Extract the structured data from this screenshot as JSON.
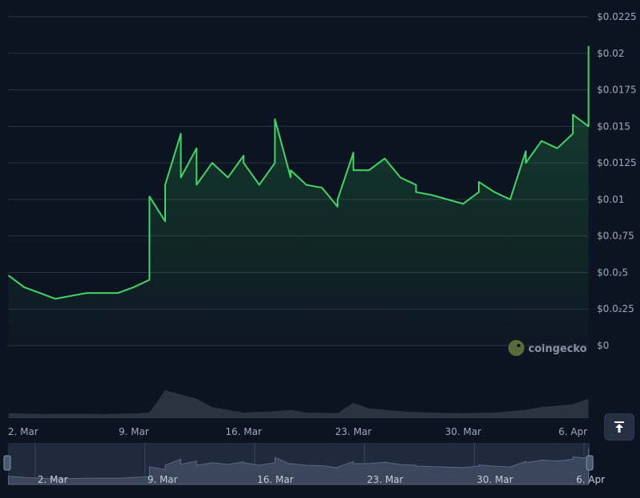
{
  "chart_data": {
    "type": "line",
    "y_tick_labels": [
      "$0.0225",
      "$0.02",
      "$0.0175",
      "$0.015",
      "$0.0125",
      "$0.01",
      "$0.0₂75",
      "$0.0₂5",
      "$0.0₂25",
      "$0"
    ],
    "ylim": [
      0,
      0.0225
    ],
    "grid": true,
    "x_tick_labels": [
      "2. Mar",
      "9. Mar",
      "16. Mar",
      "23. Mar",
      "30. Mar",
      "6. Apr"
    ],
    "price_series": {
      "x": [
        "2025-03-01",
        "2025-03-02",
        "2025-03-03",
        "2025-03-04",
        "2025-03-05",
        "2025-03-06",
        "2025-03-07",
        "2025-03-08",
        "2025-03-09",
        "2025-03-10",
        "2025-03-10",
        "2025-03-11",
        "2025-03-11",
        "2025-03-12",
        "2025-03-12",
        "2025-03-13",
        "2025-03-13",
        "2025-03-14",
        "2025-03-15",
        "2025-03-16",
        "2025-03-16",
        "2025-03-17",
        "2025-03-18",
        "2025-03-18",
        "2025-03-19",
        "2025-03-19",
        "2025-03-20",
        "2025-03-21",
        "2025-03-22",
        "2025-03-22",
        "2025-03-23",
        "2025-03-23",
        "2025-03-24",
        "2025-03-25",
        "2025-03-26",
        "2025-03-27",
        "2025-03-27",
        "2025-03-28",
        "2025-03-29",
        "2025-03-30",
        "2025-03-31",
        "2025-03-31",
        "2025-04-01",
        "2025-04-02",
        "2025-04-03",
        "2025-04-03",
        "2025-04-04",
        "2025-04-05",
        "2025-04-06",
        "2025-04-06",
        "2025-04-07",
        "2025-04-07"
      ],
      "y": [
        0.0048,
        0.004,
        0.0036,
        0.0032,
        0.0034,
        0.0036,
        0.0036,
        0.0036,
        0.004,
        0.0045,
        0.0102,
        0.0085,
        0.011,
        0.0145,
        0.0115,
        0.0135,
        0.011,
        0.0125,
        0.0115,
        0.013,
        0.0125,
        0.011,
        0.0125,
        0.0155,
        0.0115,
        0.012,
        0.011,
        0.0108,
        0.0095,
        0.01,
        0.0132,
        0.012,
        0.012,
        0.0128,
        0.0115,
        0.011,
        0.0105,
        0.0103,
        0.01,
        0.0097,
        0.0105,
        0.0112,
        0.0105,
        0.01,
        0.0133,
        0.0125,
        0.014,
        0.0135,
        0.0145,
        0.0158,
        0.015,
        0.0205
      ]
    },
    "volume_series": {
      "x": [
        "2025-03-01",
        "2025-03-03",
        "2025-03-05",
        "2025-03-07",
        "2025-03-09",
        "2025-03-10",
        "2025-03-11",
        "2025-03-12",
        "2025-03-13",
        "2025-03-14",
        "2025-03-16",
        "2025-03-18",
        "2025-03-19",
        "2025-03-20",
        "2025-03-22",
        "2025-03-23",
        "2025-03-24",
        "2025-03-26",
        "2025-03-28",
        "2025-03-30",
        "2025-04-01",
        "2025-04-03",
        "2025-04-04",
        "2025-04-05",
        "2025-04-06",
        "2025-04-07"
      ],
      "y": [
        0.18,
        0.15,
        0.16,
        0.15,
        0.17,
        0.2,
        1.0,
        0.85,
        0.7,
        0.4,
        0.2,
        0.25,
        0.3,
        0.2,
        0.18,
        0.55,
        0.35,
        0.25,
        0.2,
        0.18,
        0.2,
        0.3,
        0.4,
        0.45,
        0.5,
        0.7
      ]
    },
    "watermark": "coingecko",
    "colors": {
      "background": "#0d1421",
      "line": "#3fd665",
      "grid": "#2a3344",
      "volume": "#2b3240",
      "navigator_bg": "#1f2a3d",
      "navigator_area": "#3a465c"
    }
  },
  "navigator": {
    "tick_labels": [
      "2. Mar",
      "9. Mar",
      "16. Mar",
      "23. Mar",
      "30. Mar",
      "6. Apr"
    ]
  },
  "controls": {
    "scroll_top_icon": "arrow-up-to-line-icon"
  }
}
